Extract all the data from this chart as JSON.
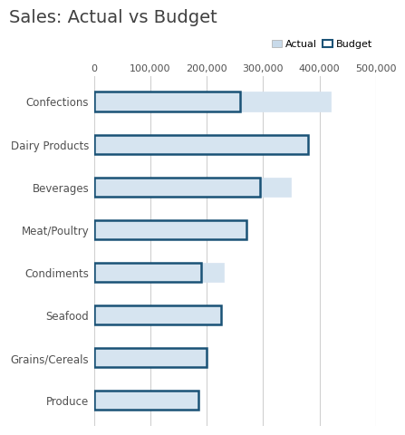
{
  "title": "Sales: Actual vs Budget",
  "categories": [
    "Confections",
    "Dairy Products",
    "Beverages",
    "Meat/Poultry",
    "Condiments",
    "Seafood",
    "Grains/Cereals",
    "Produce"
  ],
  "actual": [
    420000,
    380000,
    350000,
    270000,
    230000,
    225000,
    200000,
    185000
  ],
  "budget": [
    260000,
    380000,
    295000,
    270000,
    190000,
    225000,
    200000,
    185000
  ],
  "actual_color": "#d6e4f0",
  "actual_edgecolor": "#d6e4f0",
  "budget_edgecolor": "#1a5276",
  "budget_facecolor": "none",
  "xlim": [
    0,
    500000
  ],
  "xticks": [
    0,
    100000,
    200000,
    300000,
    400000,
    500000
  ],
  "xtick_labels": [
    "0",
    "100,000",
    "200,000",
    "300,000",
    "400,000",
    "500,000"
  ],
  "title_fontsize": 14,
  "tick_fontsize": 8,
  "label_fontsize": 8.5,
  "bar_height": 0.45,
  "background_color": "#ffffff",
  "grid_color": "#d0d0d0",
  "legend_actual_color": "#c8daea",
  "legend_budget_edgecolor": "#1a5276",
  "title_color": "#404040"
}
